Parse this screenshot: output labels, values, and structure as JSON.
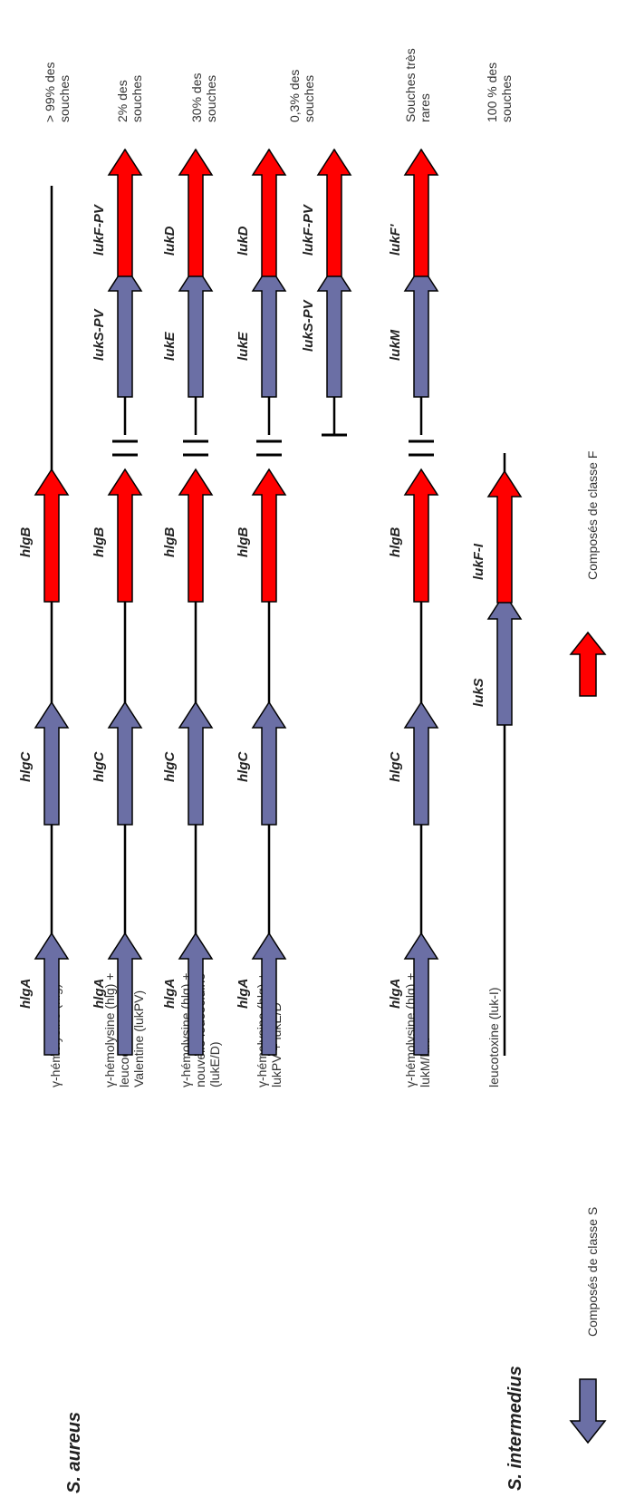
{
  "species": {
    "aureus": "S. aureus",
    "intermedius": "S. intermedius"
  },
  "colors": {
    "class_s": "#6b6fa5",
    "class_f": "#ff0000",
    "line": "#000000"
  },
  "rows": [
    {
      "toxin": [
        "γ-hémolysine (hlg)"
      ],
      "genes": [
        "hlgA",
        "hlgC",
        "hlgB"
      ],
      "extra_genes": [],
      "frequency": [
        "> 99% des",
        "souches"
      ]
    },
    {
      "toxin": [
        "γ-hémolysine (hlg) +",
        "leucocidine de Panton et",
        "Valentine (lukPV)"
      ],
      "genes": [
        "hlgA",
        "hlgC",
        "hlgB"
      ],
      "extra_genes": [
        "lukS-PV",
        "lukF-PV"
      ],
      "frequency": [
        "2% des",
        "souches"
      ]
    },
    {
      "toxin": [
        "γ-hémolysine (hlg) +",
        "nouvelle leucocidine",
        "(lukE/D)"
      ],
      "genes": [
        "hlgA",
        "hlgC",
        "hlgB"
      ],
      "extra_genes": [
        "lukE",
        "lukD"
      ],
      "frequency": [
        "30% des",
        "souches"
      ]
    },
    {
      "toxin": [
        "γ-hémolysine (hlg) +",
        "lukPV + lukE/D"
      ],
      "genes": [
        "hlgA",
        "hlgC",
        "hlgB"
      ],
      "extra_genes": [
        "lukE",
        "lukD"
      ],
      "frequency": [
        "0,3% des",
        "souches"
      ]
    },
    {
      "toxin": [],
      "genes": [],
      "extra_genes": [
        "lukS-PV",
        "lukF-PV"
      ],
      "frequency": []
    },
    {
      "toxin": [
        "γ-hémolysine (hlg) +",
        "lukM/lukF'"
      ],
      "genes": [
        "hlgA",
        "hlgC",
        "hlgB"
      ],
      "extra_genes": [
        "lukM",
        "lukF'"
      ],
      "frequency": [
        "Souches très",
        "rares"
      ]
    },
    {
      "toxin": [
        "leucotoxine (luk-I)"
      ],
      "genes": [
        "lukS",
        "lukF-I"
      ],
      "extra_genes": [],
      "frequency": [
        "100 % des",
        "souches"
      ]
    }
  ],
  "legend": {
    "class_s": "Composés de classe S",
    "class_f": "Composés de classe F"
  }
}
